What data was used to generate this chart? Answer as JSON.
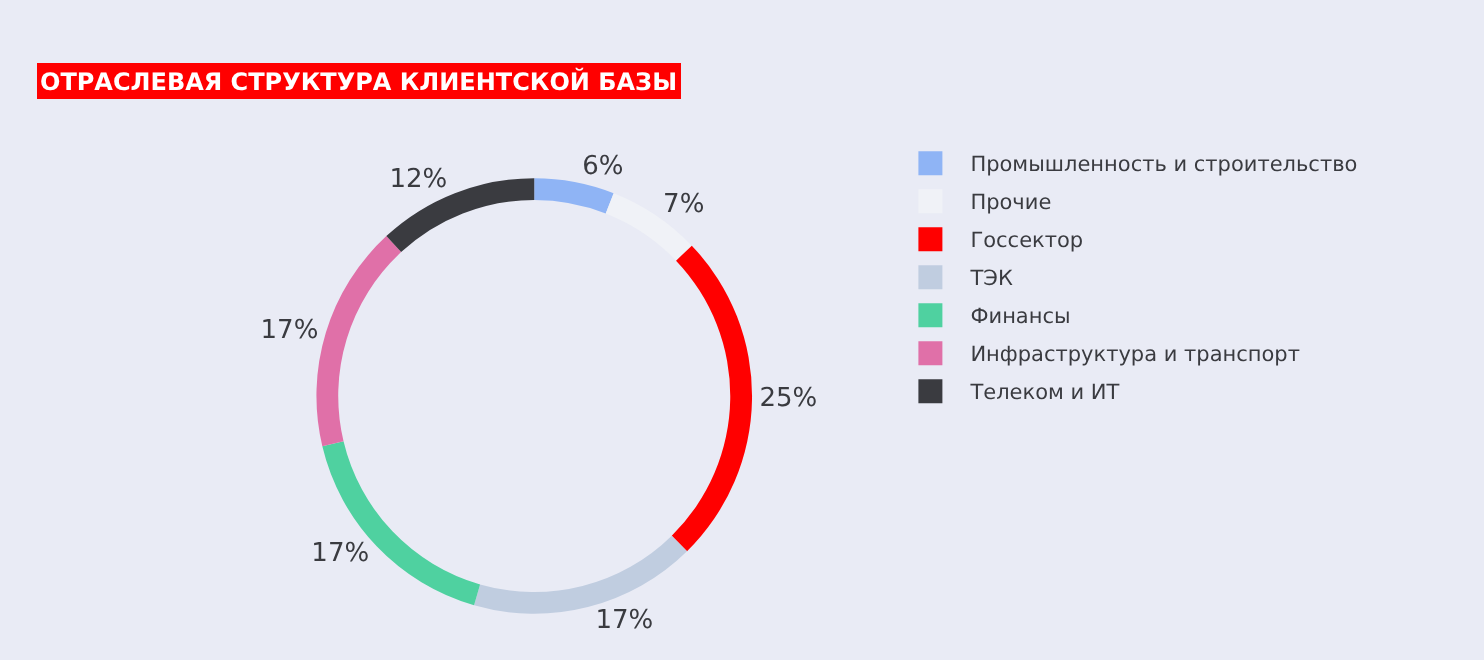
{
  "chart_data": {
    "type": "donut",
    "title": "ОТРАСЛЕВАЯ СТРУКТУРА КЛИЕНТСКОЙ БАЗЫ",
    "categories": [
      "Промышленность и строительство",
      "Прочие",
      "Госсектор",
      "ТЭК",
      "Финансы",
      "Инфраструктура и транспорт",
      "Телеком и ИТ"
    ],
    "values": [
      6,
      7,
      25,
      17,
      17,
      17,
      12
    ],
    "value_labels": [
      "6%",
      "7%",
      "25%",
      "17%",
      "17%",
      "17%",
      "12%"
    ],
    "colors": [
      "#8fb4f5",
      "#f0f2f7",
      "#ff0000",
      "#c0cde0",
      "#4fd1a0",
      "#e070a8",
      "#3a3b40"
    ],
    "legend": "right"
  }
}
